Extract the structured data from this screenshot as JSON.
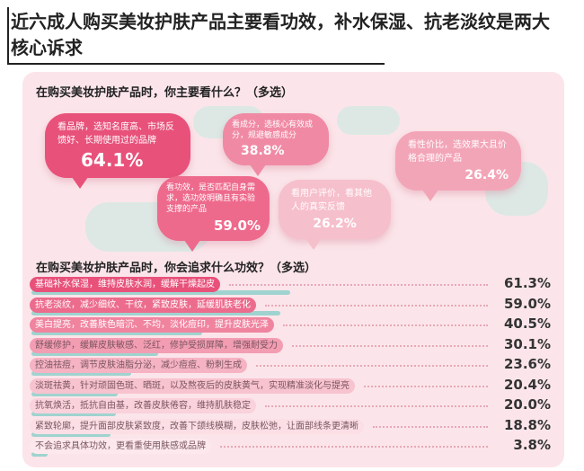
{
  "title": "近六成人购买美妆护肤产品主要看功效，补水保湿、抗老淡纹是两大核心诉求",
  "q1": "在购买美妆护肤产品时，你主要看什么？（多选）",
  "q2": "在购买美妆护肤产品时，你会追求什么功效？（多选）",
  "bubbles": [
    {
      "text": "看品牌，选知名度高、市场反馈好、长期使用过的品牌",
      "pct": "64.1%",
      "color": "#e8517a"
    },
    {
      "text": "看功效，是否匹配自身需求，选功效明确且有实验支撑的产品",
      "pct": "59.0%",
      "color": "#ee6a8c"
    },
    {
      "text": "看成分，选核心有效成分，规避敏感成分",
      "pct": "38.8%",
      "color": "#f08aa4"
    },
    {
      "text": "看用户评价，看其他人的真实反馈",
      "pct": "26.2%",
      "color": "#f6bfcc"
    },
    {
      "text": "看性价比，选效果大且价格合理的产品",
      "pct": "26.4%",
      "color": "#f3a5b8"
    }
  ],
  "chart_data": {
    "type": "bar",
    "categories": [
      "基础补水保湿，维持皮肤水润，缓解干燥起皮",
      "抗老淡纹，减少细纹、干纹，紧致皮肤，延缓肌肤老化",
      "美白提亮，改善肤色暗沉、不均，淡化痘印，提升皮肤光泽",
      "舒缓修护，缓解皮肤敏感、泛红，修护受损屏障，增强耐受力",
      "控油祛痘，调节皮肤油脂分泌，减少痘痘、粉刺生成",
      "淡斑祛黄，针对顽固色斑、晒斑，以及熬夜后的皮肤黄气，实现精准淡化与提亮",
      "抗氧焕活，抵抗自由基，改善皮肤倦容，维持肌肤稳定",
      "紧致轮廓，提升面部皮肤紧致度，改善下颌线模糊，皮肤松弛，让面部线条更清晰",
      "不会追求具体功效，更看重使用肤感或品牌"
    ],
    "values": [
      61.3,
      59.0,
      40.5,
      30.1,
      23.6,
      20.4,
      20.0,
      18.8,
      3.8
    ],
    "labels": [
      "61.3%",
      "59.0%",
      "40.5%",
      "30.1%",
      "23.6%",
      "20.4%",
      "20.0%",
      "18.8%",
      "3.8%"
    ],
    "xlim": [
      0,
      100
    ],
    "bar_color": "#9fd3cf",
    "label_colors": [
      "#e8517a",
      "#ec6c8d",
      "#f0849f",
      "#f39db2",
      "#f5b3c3",
      "#f7c3cf",
      "#f9d2db",
      "#fbdfe5",
      "#fde9ed"
    ]
  }
}
